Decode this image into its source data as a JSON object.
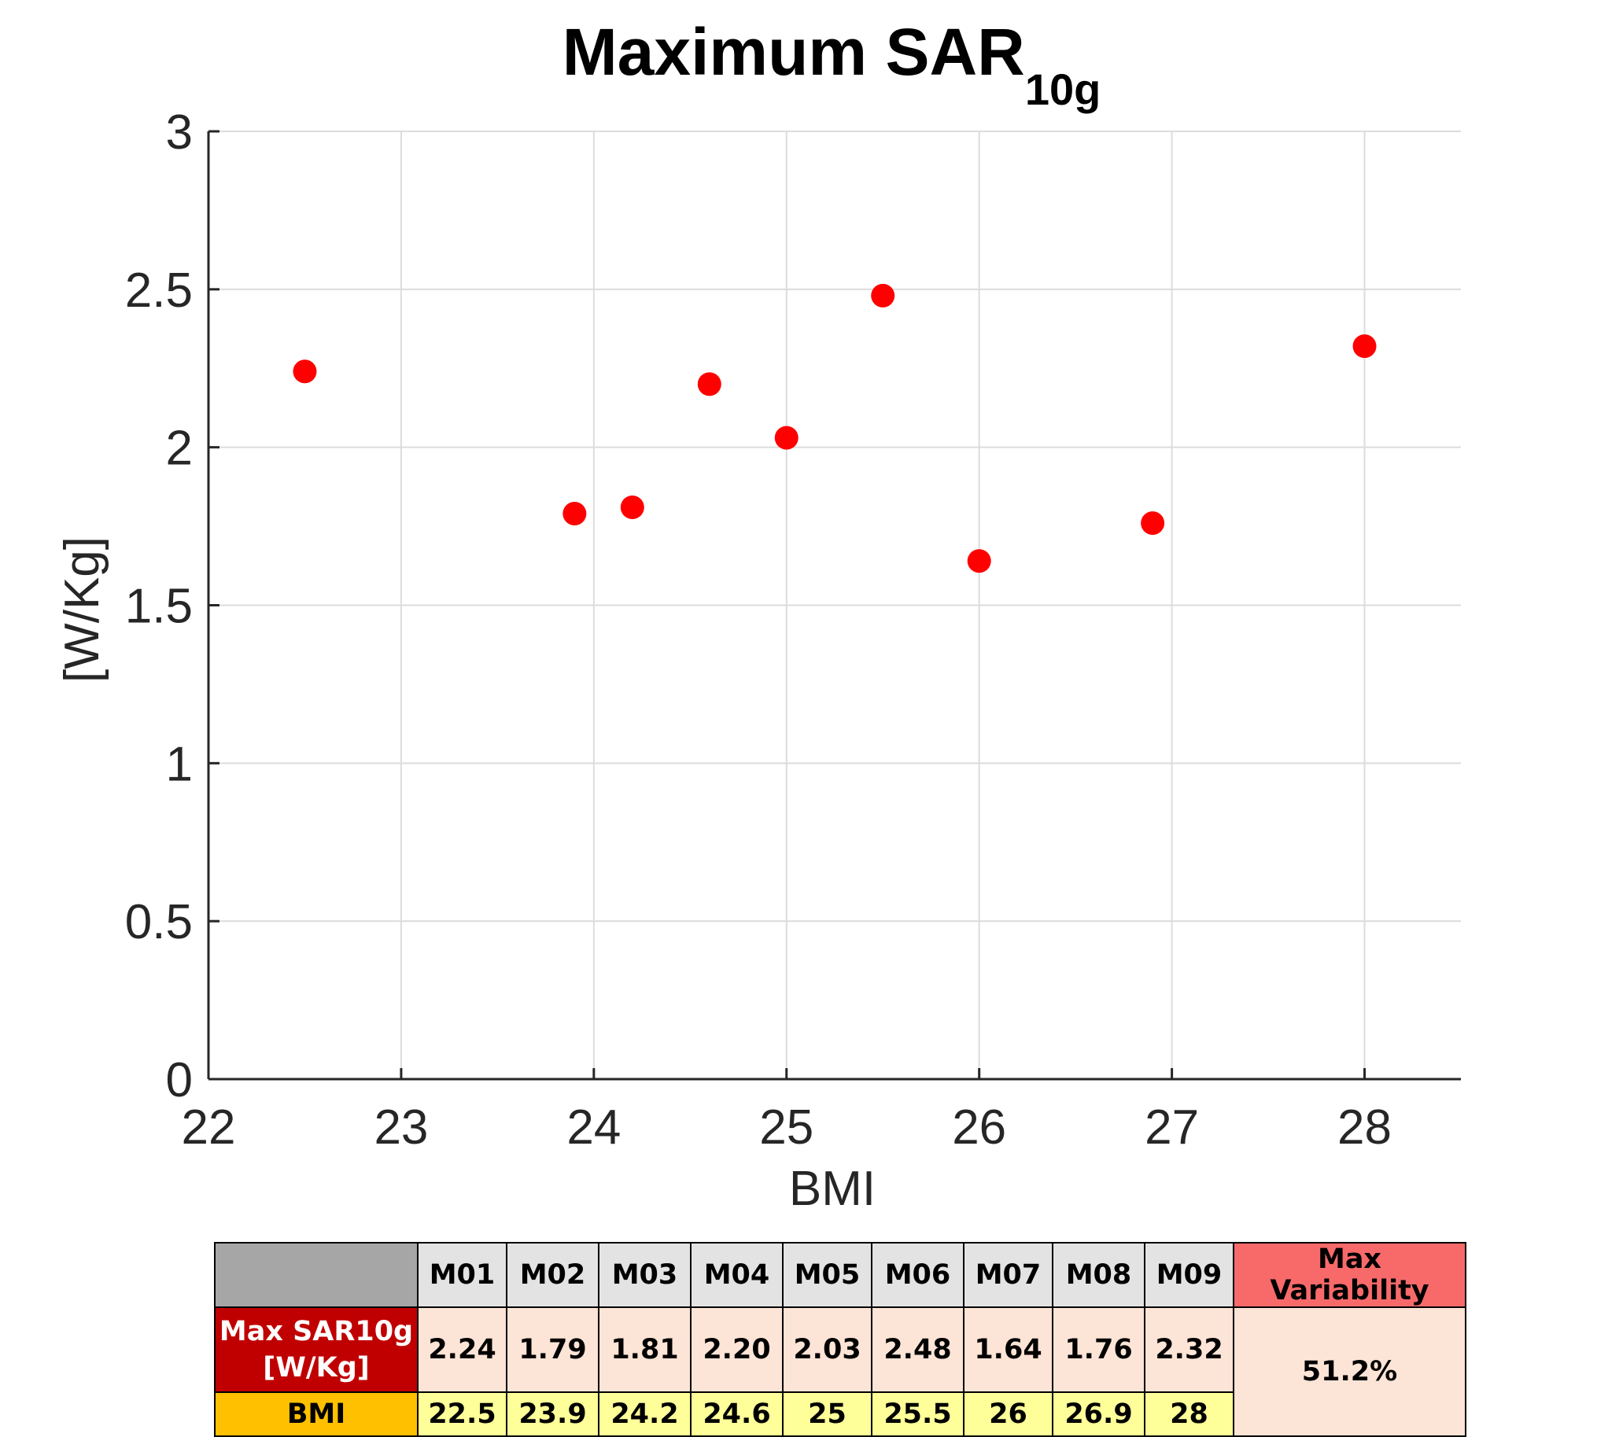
{
  "chart_data": {
    "type": "scatter",
    "title": "Maximum SAR",
    "title_subscript": "10g",
    "xlabel": "BMI",
    "ylabel": "[W/Kg]",
    "xlim": [
      22,
      28.5
    ],
    "ylim": [
      0,
      3
    ],
    "xticks": [
      22,
      23,
      24,
      25,
      26,
      27,
      28
    ],
    "yticks": [
      0,
      0.5,
      1,
      1.5,
      2,
      2.5,
      3
    ],
    "ytick_labels": [
      "0",
      "0.5",
      "1",
      "1.5",
      "2",
      "2.5",
      "3"
    ],
    "grid": true,
    "marker_color": "#ff0000",
    "x": [
      22.5,
      23.9,
      24.2,
      24.6,
      25,
      25.5,
      26,
      26.9,
      28
    ],
    "y": [
      2.24,
      1.79,
      1.81,
      2.2,
      2.03,
      2.48,
      1.64,
      1.76,
      2.32
    ]
  },
  "table": {
    "corner": "",
    "models": [
      "M01",
      "M02",
      "M03",
      "M04",
      "M05",
      "M06",
      "M07",
      "M08",
      "M09"
    ],
    "max_variability_header": "Max Variability",
    "sar_label_line1": "Max SAR10g",
    "sar_label_line2": "[W/Kg]",
    "sar_values": [
      "2.24",
      "1.79",
      "1.81",
      "2.20",
      "2.03",
      "2.48",
      "1.64",
      "1.76",
      "2.32"
    ],
    "bmi_label": "BMI",
    "bmi_values": [
      "22.5",
      "23.9",
      "24.2",
      "24.6",
      "25",
      "25.5",
      "26",
      "26.9",
      "28"
    ],
    "max_variability_value": "51.2%"
  }
}
